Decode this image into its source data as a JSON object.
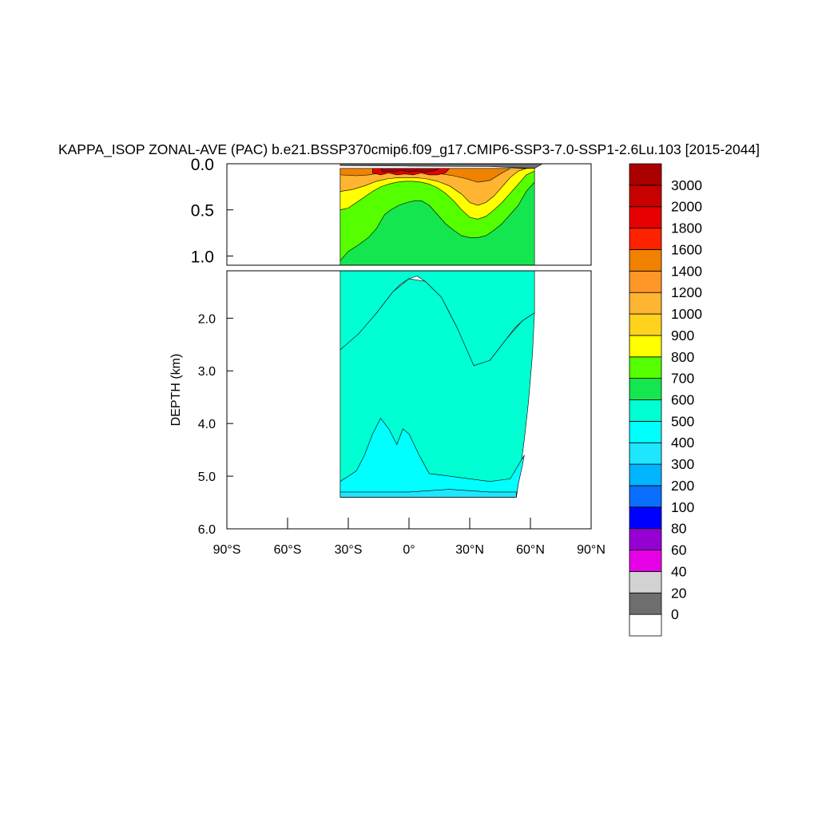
{
  "chart_data": {
    "type": "heatmap",
    "subtype": "filled-contour",
    "title": "KAPPA_ISOP ZONAL-AVE (PAC) b.e21.BSSP370cmip6.f09_g17.CMIP6-SSP3-7.0-SSP1-2.6Lu.103 [2015-2044]",
    "ylabel": "DEPTH (km)",
    "xlabel": "",
    "xlim": [
      -90,
      90
    ],
    "x_ticks": [
      {
        "value": -90,
        "label": "90°S"
      },
      {
        "value": -60,
        "label": "60°S"
      },
      {
        "value": -30,
        "label": "30°S"
      },
      {
        "value": 0,
        "label": "0°"
      },
      {
        "value": 30,
        "label": "30°N"
      },
      {
        "value": 60,
        "label": "60°N"
      },
      {
        "value": 90,
        "label": "90°N"
      }
    ],
    "upper_panel": {
      "ylim": [
        0.0,
        1.1
      ],
      "y_ticks": [
        {
          "value": 0.0,
          "label": "0.0"
        },
        {
          "value": 0.5,
          "label": "0.5"
        },
        {
          "value": 1.0,
          "label": "1.0"
        }
      ]
    },
    "lower_panel": {
      "ylim": [
        1.1,
        6.0
      ],
      "y_ticks": [
        {
          "value": 2.0,
          "label": "2.0"
        },
        {
          "value": 3.0,
          "label": "3.0"
        },
        {
          "value": 4.0,
          "label": "4.0"
        },
        {
          "value": 5.0,
          "label": "5.0"
        },
        {
          "value": 6.0,
          "label": "6.0"
        }
      ]
    },
    "data_extent": {
      "lat_min": -34,
      "lat_max": 64
    },
    "colorbar": {
      "levels": [
        "0",
        "20",
        "40",
        "60",
        "80",
        "100",
        "200",
        "300",
        "400",
        "500",
        "600",
        "700",
        "800",
        "900",
        "1000",
        "1200",
        "1400",
        "1600",
        "1800",
        "2000",
        "3000"
      ],
      "colors": [
        "#ffffff",
        "#6e6e6e",
        "#d2d2d2",
        "#e600e6",
        "#9600d2",
        "#0000ff",
        "#0a6eff",
        "#00b4ff",
        "#1ee6ff",
        "#00ffff",
        "#00ffd2",
        "#14e650",
        "#55ff00",
        "#ffff00",
        "#ffd21e",
        "#ffb432",
        "#ff9628",
        "#f08200",
        "#ff2200",
        "#e60000",
        "#c80000",
        "#aa0000"
      ]
    },
    "depth_profile": [
      {
        "lat": -34,
        "depth": 1.1
      },
      {
        "lat": -34,
        "depth": 5.4
      },
      {
        "lat": 53,
        "depth": 5.4
      },
      {
        "lat": 55,
        "depth": 4.9
      },
      {
        "lat": 57,
        "depth": 4.3
      },
      {
        "lat": 59,
        "depth": 3.6
      },
      {
        "lat": 61,
        "depth": 2.7
      },
      {
        "lat": 62,
        "depth": 2.0
      }
    ],
    "regions": [
      {
        "panel": "lower",
        "value_band": 10,
        "outline": [
          [
            -34,
            1.1
          ],
          [
            -34,
            2.6
          ],
          [
            -30,
            2.5
          ],
          [
            -25,
            2.3
          ],
          [
            -20,
            2.1
          ],
          [
            -16,
            1.9
          ],
          [
            -12,
            1.7
          ],
          [
            -8,
            1.5
          ],
          [
            -4,
            1.35
          ],
          [
            0,
            1.25
          ],
          [
            4,
            1.2
          ],
          [
            8,
            1.3
          ],
          [
            12,
            1.45
          ],
          [
            16,
            1.6
          ],
          [
            20,
            1.9
          ],
          [
            24,
            2.2
          ],
          [
            28,
            2.6
          ],
          [
            32,
            2.9
          ],
          [
            36,
            3.0
          ],
          [
            40,
            2.8
          ],
          [
            44,
            2.6
          ],
          [
            48,
            2.4
          ],
          [
            52,
            2.2
          ],
          [
            56,
            2.05
          ],
          [
            60,
            1.95
          ],
          [
            62,
            1.9
          ],
          [
            62,
            1.1
          ]
        ]
      },
      {
        "panel": "lower",
        "value_band": 10,
        "outline": [
          [
            -34,
            2.6
          ],
          [
            -34,
            5.4
          ],
          [
            53,
            5.4
          ],
          [
            55,
            4.9
          ],
          [
            57,
            4.3
          ],
          [
            59,
            3.6
          ],
          [
            61,
            2.7
          ],
          [
            62,
            1.9
          ],
          [
            56,
            2.05
          ],
          [
            48,
            2.4
          ],
          [
            40,
            2.8
          ],
          [
            32,
            2.9
          ],
          [
            24,
            2.2
          ],
          [
            16,
            1.6
          ],
          [
            8,
            1.3
          ],
          [
            0,
            1.25
          ],
          [
            -8,
            1.5
          ],
          [
            -16,
            1.9
          ],
          [
            -25,
            2.3
          ]
        ]
      },
      {
        "panel": "lower",
        "value_band": 9,
        "outline": [
          [
            -34,
            5.1
          ],
          [
            -34,
            5.4
          ],
          [
            53,
            5.4
          ],
          [
            54,
            5.15
          ],
          [
            56,
            4.8
          ],
          [
            57,
            4.6
          ],
          [
            50,
            5.05
          ],
          [
            40,
            5.1
          ],
          [
            30,
            5.05
          ],
          [
            20,
            5.0
          ],
          [
            10,
            4.95
          ],
          [
            5,
            4.6
          ],
          [
            0,
            4.2
          ],
          [
            -3,
            4.1
          ],
          [
            -6,
            4.4
          ],
          [
            -10,
            4.1
          ],
          [
            -14,
            3.9
          ],
          [
            -18,
            4.2
          ],
          [
            -22,
            4.6
          ],
          [
            -26,
            4.9
          ],
          [
            -30,
            5.0
          ]
        ]
      },
      {
        "panel": "lower",
        "value_band": 8,
        "outline": [
          [
            -34,
            5.3
          ],
          [
            -34,
            5.4
          ],
          [
            53,
            5.4
          ],
          [
            53,
            5.3
          ],
          [
            40,
            5.3
          ],
          [
            20,
            5.25
          ],
          [
            0,
            5.3
          ],
          [
            -20,
            5.3
          ]
        ]
      },
      {
        "panel": "upper",
        "value_band": 11,
        "outline": [
          [
            -34,
            0.05
          ],
          [
            -34,
            1.1
          ],
          [
            62,
            1.1
          ],
          [
            62,
            0.05
          ]
        ]
      },
      {
        "panel": "upper",
        "value_band": 12,
        "outline": [
          [
            -34,
            0.05
          ],
          [
            -34,
            1.05
          ],
          [
            -30,
            0.95
          ],
          [
            -25,
            0.88
          ],
          [
            -20,
            0.8
          ],
          [
            -16,
            0.7
          ],
          [
            -12,
            0.55
          ],
          [
            -9,
            0.5
          ],
          [
            -5,
            0.45
          ],
          [
            -1,
            0.42
          ],
          [
            3,
            0.4
          ],
          [
            6,
            0.4
          ],
          [
            10,
            0.45
          ],
          [
            14,
            0.55
          ],
          [
            18,
            0.65
          ],
          [
            22,
            0.72
          ],
          [
            26,
            0.78
          ],
          [
            30,
            0.8
          ],
          [
            34,
            0.8
          ],
          [
            38,
            0.78
          ],
          [
            42,
            0.72
          ],
          [
            46,
            0.65
          ],
          [
            50,
            0.55
          ],
          [
            54,
            0.45
          ],
          [
            58,
            0.3
          ],
          [
            62,
            0.2
          ],
          [
            62,
            0.05
          ]
        ]
      },
      {
        "panel": "upper",
        "value_band": 13,
        "outline": [
          [
            -34,
            0.05
          ],
          [
            -34,
            0.5
          ],
          [
            -30,
            0.48
          ],
          [
            -26,
            0.42
          ],
          [
            -22,
            0.36
          ],
          [
            -18,
            0.3
          ],
          [
            -14,
            0.25
          ],
          [
            -10,
            0.22
          ],
          [
            -6,
            0.2
          ],
          [
            -2,
            0.19
          ],
          [
            2,
            0.19
          ],
          [
            6,
            0.2
          ],
          [
            10,
            0.22
          ],
          [
            14,
            0.26
          ],
          [
            18,
            0.32
          ],
          [
            22,
            0.4
          ],
          [
            26,
            0.5
          ],
          [
            30,
            0.58
          ],
          [
            34,
            0.6
          ],
          [
            38,
            0.57
          ],
          [
            42,
            0.5
          ],
          [
            46,
            0.42
          ],
          [
            50,
            0.32
          ],
          [
            54,
            0.22
          ],
          [
            58,
            0.12
          ],
          [
            62,
            0.08
          ],
          [
            62,
            0.05
          ]
        ]
      },
      {
        "panel": "upper",
        "value_band": 15,
        "outline": [
          [
            -34,
            0.05
          ],
          [
            -34,
            0.3
          ],
          [
            -28,
            0.28
          ],
          [
            -22,
            0.24
          ],
          [
            -16,
            0.19
          ],
          [
            -10,
            0.16
          ],
          [
            -4,
            0.15
          ],
          [
            2,
            0.15
          ],
          [
            8,
            0.16
          ],
          [
            14,
            0.19
          ],
          [
            20,
            0.24
          ],
          [
            26,
            0.33
          ],
          [
            30,
            0.42
          ],
          [
            34,
            0.45
          ],
          [
            38,
            0.42
          ],
          [
            42,
            0.35
          ],
          [
            46,
            0.25
          ],
          [
            50,
            0.15
          ],
          [
            54,
            0.08
          ],
          [
            58,
            0.05
          ]
        ]
      },
      {
        "panel": "upper",
        "value_band": 17,
        "outline": [
          [
            -34,
            0.05
          ],
          [
            -34,
            0.12
          ],
          [
            -26,
            0.13
          ],
          [
            -20,
            0.12
          ],
          [
            -14,
            0.1
          ],
          [
            -8,
            0.09
          ],
          [
            -2,
            0.09
          ],
          [
            4,
            0.09
          ],
          [
            10,
            0.1
          ],
          [
            16,
            0.11
          ],
          [
            22,
            0.13
          ],
          [
            28,
            0.16
          ],
          [
            34,
            0.2
          ],
          [
            40,
            0.18
          ],
          [
            46,
            0.1
          ],
          [
            50,
            0.05
          ]
        ]
      },
      {
        "panel": "upper",
        "value_band": 19,
        "outline": [
          [
            -18,
            0.05
          ],
          [
            -18,
            0.1
          ],
          [
            -14,
            0.12
          ],
          [
            -10,
            0.1
          ],
          [
            -6,
            0.12
          ],
          [
            -2,
            0.11
          ],
          [
            2,
            0.12
          ],
          [
            6,
            0.1
          ],
          [
            10,
            0.12
          ],
          [
            14,
            0.12
          ],
          [
            18,
            0.1
          ],
          [
            20,
            0.05
          ]
        ]
      },
      {
        "panel": "upper",
        "value_band": 21,
        "outline": [
          [
            -14,
            0.05
          ],
          [
            -13,
            0.09
          ],
          [
            -10,
            0.08
          ],
          [
            -7,
            0.09
          ],
          [
            -4,
            0.07
          ],
          [
            0,
            0.09
          ],
          [
            4,
            0.08
          ],
          [
            8,
            0.09
          ],
          [
            12,
            0.08
          ],
          [
            15,
            0.05
          ]
        ]
      },
      {
        "panel": "upper",
        "value_band": 1,
        "outline": [
          [
            -34,
            0.0
          ],
          [
            -34,
            0.02
          ],
          [
            0,
            0.025
          ],
          [
            40,
            0.03
          ],
          [
            62,
            0.05
          ],
          [
            66,
            0.0
          ]
        ]
      }
    ]
  }
}
